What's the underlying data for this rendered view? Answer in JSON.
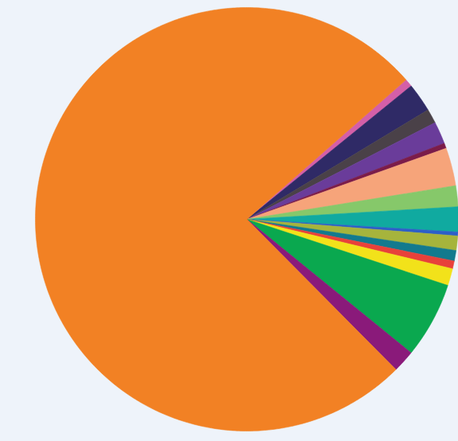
{
  "chart_data": {
    "type": "pie",
    "values": [
      0.6,
      2.2,
      1.1,
      1.7,
      0.4,
      2.9,
      1.6,
      1.9,
      0.3,
      1.1,
      0.8,
      0.6,
      1.3,
      5.8,
      1.7,
      76.0
    ],
    "colors": [
      "#d45fa8",
      "#2f2a66",
      "#4a4148",
      "#6a3c9a",
      "#7b1c4a",
      "#f6a47a",
      "#86c86a",
      "#10aaa0",
      "#2d5fc8",
      "#a6b43c",
      "#127a8e",
      "#e8413a",
      "#f2e21a",
      "#0aa84f",
      "#8a1a7a",
      "#f28124"
    ]
  }
}
